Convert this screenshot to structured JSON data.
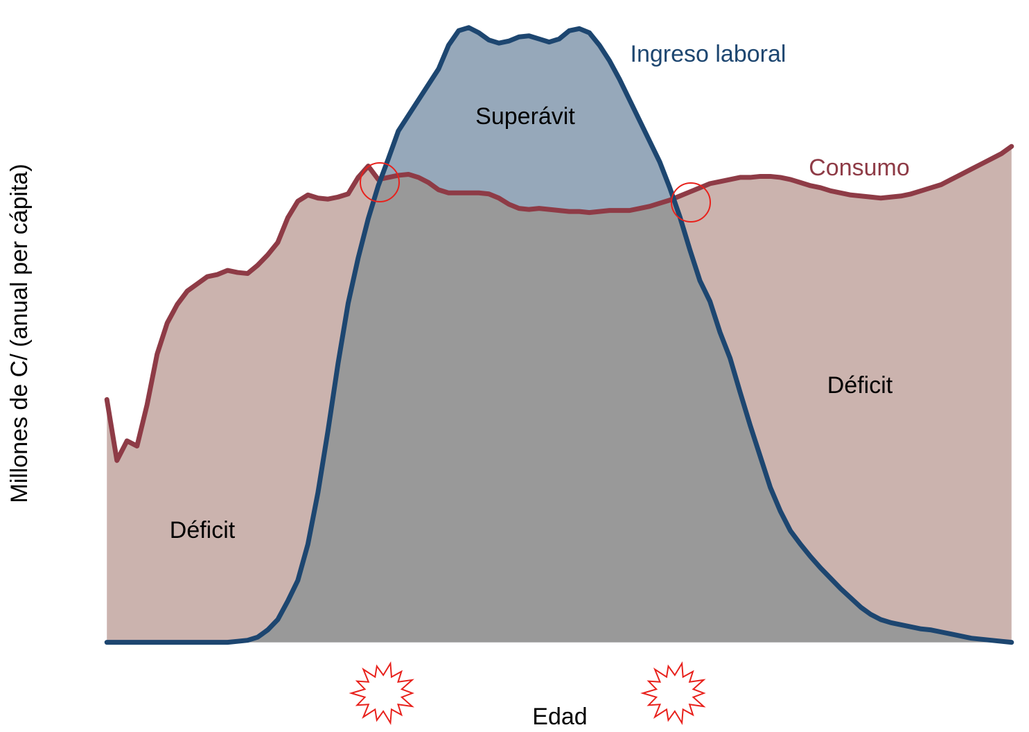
{
  "chart_data": {
    "type": "area",
    "xlabel": "Edad",
    "ylabel": "Millones de C/ (anual per cápita)",
    "x": [
      0.5,
      1.5,
      2.5,
      3.5,
      4.5,
      5.5,
      6.5,
      7.5,
      8.5,
      9.5,
      10.5,
      11.5,
      12.5,
      13.5,
      14.5,
      15.5,
      16.5,
      17.5,
      18.5,
      19.5,
      20.5,
      21.5,
      22.5,
      23.5,
      24.5,
      25.5,
      26.5,
      27.5,
      28.5,
      29.5,
      30.5,
      31.5,
      32.5,
      33.5,
      34.5,
      35.5,
      36.5,
      37.5,
      38.5,
      39.5,
      40.5,
      41.5,
      42.5,
      43.5,
      44.5,
      45.5,
      46.5,
      47.5,
      48.5,
      49.5,
      50.5,
      51.5,
      52.5,
      53.5,
      54.5,
      55.5,
      56.5,
      57.5,
      58.5,
      59.5,
      60.5,
      61.5,
      62.5,
      63.5,
      64.5,
      65.5,
      66.5,
      67.5,
      68.5,
      69.5,
      70.5,
      71.5,
      72.5,
      73.5,
      74.5,
      75.5,
      76.5,
      77.5,
      78.5,
      79.5,
      80.5,
      81.5,
      82.5,
      83.5,
      84.5,
      85.5,
      86.5,
      87.5,
      88.5,
      89.5,
      90.5
    ],
    "series": [
      {
        "name": "Consumo",
        "color": "#8e3b46",
        "fill": "#cbb3ae",
        "values": [
          2.35,
          1.76,
          1.95,
          1.9,
          2.3,
          2.79,
          3.09,
          3.27,
          3.4,
          3.47,
          3.54,
          3.56,
          3.6,
          3.58,
          3.57,
          3.65,
          3.75,
          3.87,
          4.11,
          4.27,
          4.33,
          4.3,
          4.29,
          4.31,
          4.34,
          4.5,
          4.61,
          4.48,
          4.5,
          4.52,
          4.53,
          4.5,
          4.45,
          4.38,
          4.35,
          4.35,
          4.35,
          4.35,
          4.34,
          4.3,
          4.24,
          4.2,
          4.19,
          4.2,
          4.19,
          4.18,
          4.17,
          4.17,
          4.16,
          4.17,
          4.18,
          4.18,
          4.18,
          4.2,
          4.22,
          4.25,
          4.28,
          4.32,
          4.36,
          4.4,
          4.44,
          4.46,
          4.48,
          4.5,
          4.5,
          4.51,
          4.51,
          4.5,
          4.48,
          4.45,
          4.42,
          4.4,
          4.37,
          4.35,
          4.33,
          4.32,
          4.31,
          4.3,
          4.31,
          4.32,
          4.34,
          4.37,
          4.4,
          4.43,
          4.48,
          4.53,
          4.58,
          4.63,
          4.68,
          4.73,
          4.8
        ]
      },
      {
        "name": "Ingreso laboral",
        "color": "#1d4670",
        "fill": "#96a8ba",
        "values": [
          0,
          0,
          0,
          0,
          0,
          0,
          0,
          0,
          0,
          0,
          0,
          0,
          0,
          0.01,
          0.02,
          0.05,
          0.12,
          0.22,
          0.4,
          0.6,
          0.95,
          1.45,
          2.05,
          2.7,
          3.28,
          3.72,
          4.1,
          4.42,
          4.68,
          4.95,
          5.1,
          5.25,
          5.4,
          5.55,
          5.78,
          5.92,
          5.95,
          5.9,
          5.83,
          5.8,
          5.82,
          5.86,
          5.87,
          5.84,
          5.81,
          5.84,
          5.92,
          5.94,
          5.9,
          5.78,
          5.63,
          5.45,
          5.25,
          5.05,
          4.85,
          4.65,
          4.4,
          4.12,
          3.8,
          3.5,
          3.3,
          3.0,
          2.75,
          2.42,
          2.1,
          1.8,
          1.5,
          1.27,
          1.08,
          0.95,
          0.83,
          0.72,
          0.62,
          0.52,
          0.43,
          0.34,
          0.27,
          0.22,
          0.19,
          0.17,
          0.15,
          0.13,
          0.12,
          0.1,
          0.08,
          0.06,
          0.04,
          0.03,
          0.02,
          0.01,
          0
        ]
      }
    ],
    "overlap_color": "#999999",
    "annotations": [
      "Superávit",
      "Déficit",
      "Déficit"
    ],
    "xlim": [
      -1.86,
      92.1
    ],
    "ylim": [
      -0.17,
      6.15
    ],
    "xticks": [
      0,
      10,
      20,
      28,
      40,
      50,
      57,
      70,
      80,
      90
    ],
    "yticks": [
      0,
      1,
      2,
      3,
      4,
      5,
      6
    ],
    "grid": true
  }
}
